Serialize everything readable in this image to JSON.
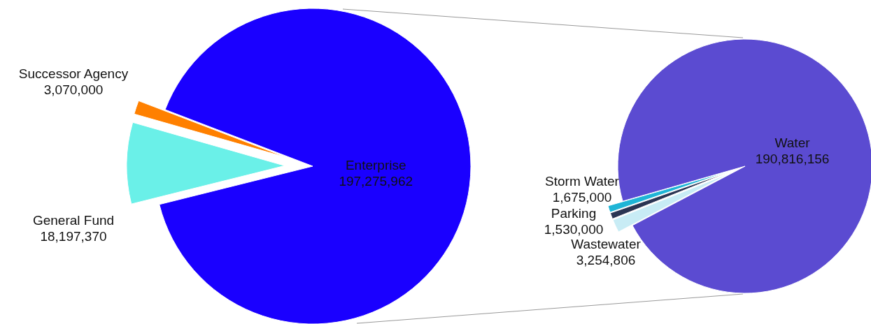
{
  "chart_data": [
    {
      "type": "pie",
      "categories": [
        "Enterprise",
        "General Fund",
        "Successor Agency"
      ],
      "values": [
        197275962,
        18197370,
        3070000
      ],
      "colors": [
        "#1a00ff",
        "#6af0e8",
        "#ff8000"
      ],
      "value_labels": [
        "197,275,962",
        "18,197,370",
        "3,070,000"
      ]
    },
    {
      "type": "pie",
      "categories": [
        "Water",
        "Wastewater",
        "Parking",
        "Storm Water"
      ],
      "values": [
        190816156,
        3254806,
        1530000,
        1675000
      ],
      "colors": [
        "#5b4bd1",
        "#c8ecf5",
        "#2b3553",
        "#1fb5d6"
      ],
      "value_labels": [
        "190,816,156",
        "3,254,806",
        "1,530,000",
        "1,675,000"
      ]
    }
  ]
}
